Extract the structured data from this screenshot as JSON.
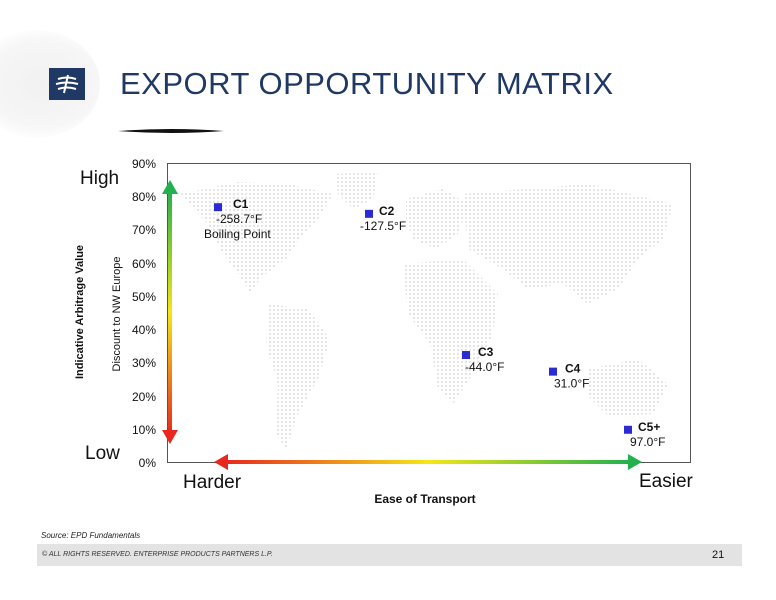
{
  "header": {
    "title": "EXPORT OPPORTUNITY MATRIX",
    "logo": "enterprise-products-logo"
  },
  "axis_words": {
    "y_high": "High",
    "y_low": "Low",
    "x_left": "Harder",
    "x_right": "Easier"
  },
  "colors": {
    "title": "#1f3864",
    "marker": "#2b2bd4",
    "arrow_green": "#22b14c",
    "arrow_yellow": "#f5e616",
    "arrow_red": "#e8281e",
    "map_dots": "#d6d6d6"
  },
  "chart_data": {
    "type": "scatter",
    "title": "",
    "xlabel": "Ease of Transport",
    "ylabel": "Indicative Arbitrage Value",
    "ylabel_secondary": "Discount to NW Europe",
    "ylim": [
      0,
      90
    ],
    "y_ticks": [
      "0%",
      "10%",
      "20%",
      "30%",
      "40%",
      "50%",
      "60%",
      "70%",
      "80%",
      "90%"
    ],
    "grid": false,
    "background": "world map",
    "points": [
      {
        "label": "C1",
        "sub": "-258.7°F",
        "note": "Boiling Point",
        "y": 77
      },
      {
        "label": "C2",
        "sub": "-127.5°F",
        "y": 75
      },
      {
        "label": "C3",
        "sub": "-44.0°F",
        "y": 32.5
      },
      {
        "label": "C4",
        "sub": "31.0°F",
        "y": 27.5
      },
      {
        "label": "C5+",
        "sub": "97.0°F",
        "y": 10
      }
    ]
  },
  "source": "Source:  EPD Fundamentals",
  "footer": {
    "copyright": "© ALL RIGHTS RESERVED. ENTERPRISE PRODUCTS PARTNERS L.P.",
    "page": "21"
  }
}
